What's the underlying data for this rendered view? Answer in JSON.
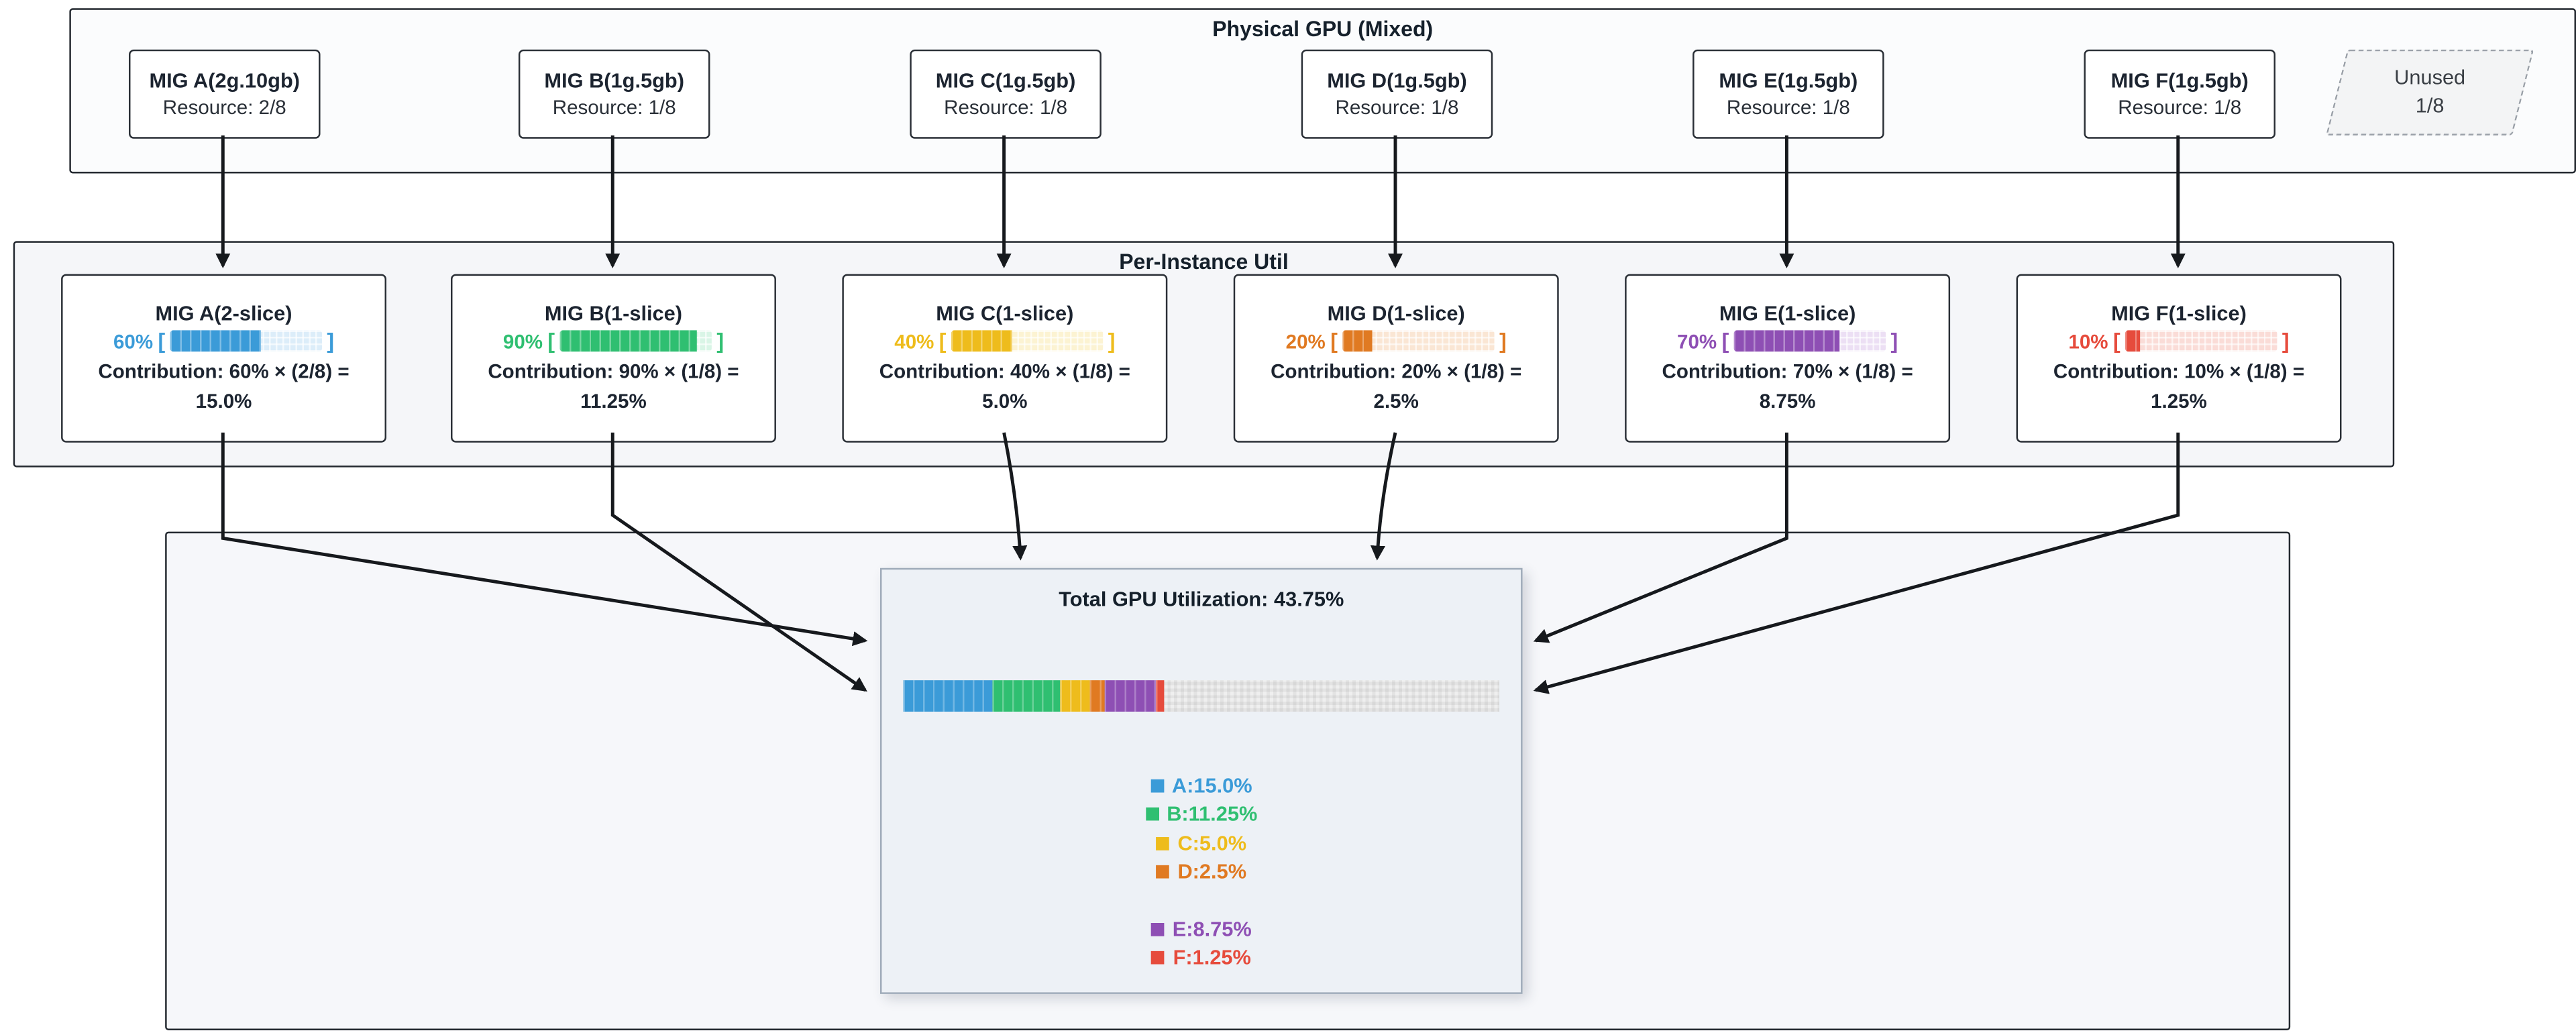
{
  "ui": {
    "bracket_open": "[",
    "bracket_close": "]"
  },
  "physical": {
    "title": "Physical GPU (Mixed)",
    "nodes": [
      {
        "name": "MIG A(2g.10gb)",
        "resource": "Resource: 2/8"
      },
      {
        "name": "MIG B(1g.5gb)",
        "resource": "Resource: 1/8"
      },
      {
        "name": "MIG C(1g.5gb)",
        "resource": "Resource: 1/8"
      },
      {
        "name": "MIG D(1g.5gb)",
        "resource": "Resource: 1/8"
      },
      {
        "name": "MIG E(1g.5gb)",
        "resource": "Resource: 1/8"
      },
      {
        "name": "MIG F(1g.5gb)",
        "resource": "Resource: 1/8"
      }
    ],
    "unused": {
      "label": "Unused",
      "fraction": "1/8"
    }
  },
  "per_instance": {
    "title": "Per-Instance Util",
    "nodes": [
      {
        "name": "MIG A(2-slice)",
        "pct_label": "60%",
        "pct": 60,
        "color": "#3b9bd8",
        "tint": "#dcedf9",
        "contrib1": "Contribution: 60% × (2/8) =",
        "contrib2": "15.0%"
      },
      {
        "name": "MIG B(1-slice)",
        "pct_label": "90%",
        "pct": 90,
        "color": "#2fbf71",
        "tint": "#d9f5e6",
        "contrib1": "Contribution: 90% × (1/8) =",
        "contrib2": "11.25%"
      },
      {
        "name": "MIG C(1-slice)",
        "pct_label": "40%",
        "pct": 40,
        "color": "#eebc1c",
        "tint": "#fcf3d2",
        "contrib1": "Contribution: 40% × (1/8) =",
        "contrib2": "5.0%"
      },
      {
        "name": "MIG D(1-slice)",
        "pct_label": "20%",
        "pct": 20,
        "color": "#e07a22",
        "tint": "#fae6d4",
        "contrib1": "Contribution: 20% × (1/8) =",
        "contrib2": "2.5%"
      },
      {
        "name": "MIG E(1-slice)",
        "pct_label": "70%",
        "pct": 70,
        "color": "#8e4fb4",
        "tint": "#ecdff4",
        "contrib1": "Contribution: 70% × (1/8) =",
        "contrib2": "8.75%"
      },
      {
        "name": "MIG F(1-slice)",
        "pct_label": "10%",
        "pct": 10,
        "color": "#e64b3c",
        "tint": "#fadcd7",
        "contrib1": "Contribution: 10% × (1/8) =",
        "contrib2": "1.25%"
      }
    ]
  },
  "total": {
    "title": "Total GPU Utilization: 43.75%",
    "total_pct": 43.75,
    "segments": [
      {
        "label": "A",
        "pct": 15.0,
        "color": "#3b9bd8"
      },
      {
        "label": "B",
        "pct": 11.25,
        "color": "#2fbf71"
      },
      {
        "label": "C",
        "pct": 5.0,
        "color": "#eebc1c"
      },
      {
        "label": "D",
        "pct": 2.5,
        "color": "#e07a22"
      },
      {
        "label": "E",
        "pct": 8.75,
        "color": "#8e4fb4"
      },
      {
        "label": "F",
        "pct": 1.25,
        "color": "#e64b3c"
      }
    ],
    "legend": [
      {
        "label": "A:15.0%",
        "color": "#3b9bd8"
      },
      {
        "label": "B:11.25%",
        "color": "#2fbf71"
      },
      {
        "label": "C:5.0%",
        "color": "#eebc1c"
      },
      {
        "label": "D:2.5%",
        "color": "#e07a22"
      },
      {
        "label": "E:8.75%",
        "color": "#8e4fb4"
      },
      {
        "label": "F:1.25%",
        "color": "#e64b3c"
      }
    ]
  }
}
